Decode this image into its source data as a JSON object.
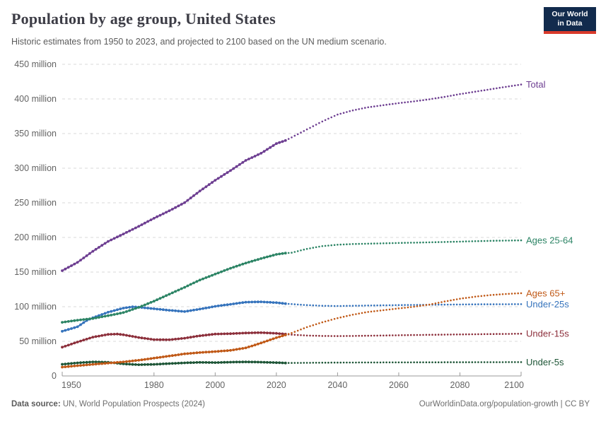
{
  "header": {
    "title": "Population by age group, United States",
    "subtitle": "Historic estimates from 1950 to 2023, and projected to 2100 based on the UN medium scenario."
  },
  "logo": {
    "line1": "Our World",
    "line2": "in Data"
  },
  "footer": {
    "source_label": "Data source:",
    "source": "UN, World Population Prospects (2024)",
    "credit": "OurWorldinData.org/population-growth | CC BY"
  },
  "chart_data": {
    "type": "line",
    "title": "Population by age group, United States",
    "unit": "million",
    "xlabel": "",
    "ylabel": "",
    "xlim": [
      1950,
      2100
    ],
    "ylim": [
      0,
      450
    ],
    "grid": true,
    "legend_position": "right-of-lines",
    "projection_start_year": 2023,
    "x_ticks": [
      1950,
      1980,
      2000,
      2020,
      2040,
      2060,
      2080,
      2100
    ],
    "y_ticks": [
      {
        "value": 0,
        "label": "0"
      },
      {
        "value": 50,
        "label": "50 million"
      },
      {
        "value": 100,
        "label": "100 million"
      },
      {
        "value": 150,
        "label": "150 million"
      },
      {
        "value": 200,
        "label": "200 million"
      },
      {
        "value": 250,
        "label": "250 million"
      },
      {
        "value": 300,
        "label": "300 million"
      },
      {
        "value": 350,
        "label": "350 million"
      },
      {
        "value": 400,
        "label": "400 million"
      },
      {
        "value": 450,
        "label": "450 million"
      }
    ],
    "series": [
      {
        "name": "Under-5s",
        "color": "#1d5536",
        "historic": [
          [
            1950,
            16.8
          ],
          [
            1955,
            18.9
          ],
          [
            1960,
            20.3
          ],
          [
            1965,
            19.8
          ],
          [
            1970,
            17.4
          ],
          [
            1975,
            16.2
          ],
          [
            1980,
            16.7
          ],
          [
            1985,
            17.9
          ],
          [
            1990,
            18.9
          ],
          [
            1995,
            19.6
          ],
          [
            2000,
            19.3
          ],
          [
            2005,
            19.9
          ],
          [
            2010,
            20.3
          ],
          [
            2015,
            19.9
          ],
          [
            2020,
            19.2
          ],
          [
            2023,
            18.7
          ]
        ],
        "projected": [
          [
            2023,
            18.7
          ],
          [
            2030,
            19.0
          ],
          [
            2040,
            19.3
          ],
          [
            2050,
            19.5
          ],
          [
            2060,
            19.6
          ],
          [
            2070,
            19.7
          ],
          [
            2080,
            19.8
          ],
          [
            2090,
            19.9
          ],
          [
            2100,
            20.0
          ]
        ]
      },
      {
        "name": "Under-15s",
        "color": "#8c2f3b",
        "historic": [
          [
            1950,
            41.5
          ],
          [
            1955,
            49.0
          ],
          [
            1960,
            56.0
          ],
          [
            1965,
            60.0
          ],
          [
            1968,
            60.5
          ],
          [
            1970,
            59.5
          ],
          [
            1975,
            55.5
          ],
          [
            1980,
            52.5
          ],
          [
            1985,
            52.2
          ],
          [
            1990,
            54.5
          ],
          [
            1995,
            58.0
          ],
          [
            2000,
            60.5
          ],
          [
            2005,
            61.0
          ],
          [
            2010,
            62.0
          ],
          [
            2015,
            62.5
          ],
          [
            2020,
            61.5
          ],
          [
            2023,
            60.4
          ]
        ],
        "projected": [
          [
            2023,
            60.4
          ],
          [
            2025,
            59.6
          ],
          [
            2030,
            58.4
          ],
          [
            2035,
            57.8
          ],
          [
            2040,
            57.6
          ],
          [
            2045,
            57.8
          ],
          [
            2050,
            58.1
          ],
          [
            2055,
            58.4
          ],
          [
            2060,
            58.8
          ],
          [
            2065,
            59.1
          ],
          [
            2070,
            59.4
          ],
          [
            2075,
            59.7
          ],
          [
            2080,
            60.0
          ],
          [
            2085,
            60.2
          ],
          [
            2090,
            60.5
          ],
          [
            2095,
            60.7
          ],
          [
            2100,
            61.0
          ]
        ]
      },
      {
        "name": "Under-25s",
        "color": "#3573bc",
        "historic": [
          [
            1950,
            64.5
          ],
          [
            1955,
            71.0
          ],
          [
            1958,
            80.0
          ],
          [
            1960,
            84.0
          ],
          [
            1965,
            92.0
          ],
          [
            1970,
            98.0
          ],
          [
            1973,
            99.8
          ],
          [
            1975,
            99.3
          ],
          [
            1980,
            97.0
          ],
          [
            1985,
            94.8
          ],
          [
            1990,
            93.0
          ],
          [
            1995,
            96.5
          ],
          [
            2000,
            100.5
          ],
          [
            2005,
            103.5
          ],
          [
            2010,
            106.5
          ],
          [
            2015,
            107.0
          ],
          [
            2020,
            105.8
          ],
          [
            2023,
            104.4
          ]
        ],
        "projected": [
          [
            2023,
            104.4
          ],
          [
            2025,
            103.8
          ],
          [
            2030,
            102.3
          ],
          [
            2035,
            101.3
          ],
          [
            2040,
            101.0
          ],
          [
            2045,
            101.3
          ],
          [
            2050,
            101.7
          ],
          [
            2055,
            102.0
          ],
          [
            2060,
            102.3
          ],
          [
            2065,
            102.6
          ],
          [
            2070,
            102.8
          ],
          [
            2075,
            103.0
          ],
          [
            2080,
            103.2
          ],
          [
            2085,
            103.4
          ],
          [
            2090,
            103.5
          ],
          [
            2095,
            103.6
          ],
          [
            2100,
            103.7
          ]
        ]
      },
      {
        "name": "Ages 25-64",
        "color": "#2c8465",
        "historic": [
          [
            1950,
            77.5
          ],
          [
            1955,
            80.5
          ],
          [
            1960,
            83.0
          ],
          [
            1965,
            87.0
          ],
          [
            1970,
            91.5
          ],
          [
            1975,
            99.0
          ],
          [
            1980,
            108.0
          ],
          [
            1985,
            118.0
          ],
          [
            1990,
            128.0
          ],
          [
            1995,
            138.5
          ],
          [
            2000,
            147.0
          ],
          [
            2005,
            155.5
          ],
          [
            2010,
            163.0
          ],
          [
            2015,
            169.5
          ],
          [
            2020,
            175.5
          ],
          [
            2023,
            177.3
          ]
        ],
        "projected": [
          [
            2023,
            177.3
          ],
          [
            2025,
            178.0
          ],
          [
            2030,
            183.5
          ],
          [
            2035,
            187.5
          ],
          [
            2040,
            189.5
          ],
          [
            2045,
            190.5
          ],
          [
            2050,
            191.0
          ],
          [
            2055,
            191.5
          ],
          [
            2060,
            192.0
          ],
          [
            2065,
            192.5
          ],
          [
            2070,
            193.0
          ],
          [
            2075,
            193.5
          ],
          [
            2080,
            194.0
          ],
          [
            2085,
            194.6
          ],
          [
            2090,
            195.1
          ],
          [
            2095,
            195.5
          ],
          [
            2100,
            195.8
          ]
        ]
      },
      {
        "name": "Ages 65+",
        "color": "#c05917",
        "historic": [
          [
            1950,
            12.8
          ],
          [
            1955,
            14.8
          ],
          [
            1960,
            16.7
          ],
          [
            1965,
            18.5
          ],
          [
            1970,
            20.3
          ],
          [
            1975,
            22.7
          ],
          [
            1980,
            25.7
          ],
          [
            1985,
            28.8
          ],
          [
            1990,
            31.9
          ],
          [
            1995,
            33.8
          ],
          [
            2000,
            35.2
          ],
          [
            2005,
            36.9
          ],
          [
            2010,
            40.5
          ],
          [
            2015,
            47.5
          ],
          [
            2020,
            55.2
          ],
          [
            2023,
            59.2
          ]
        ],
        "projected": [
          [
            2023,
            59.2
          ],
          [
            2025,
            62.0
          ],
          [
            2030,
            70.5
          ],
          [
            2035,
            77.5
          ],
          [
            2040,
            83.5
          ],
          [
            2045,
            88.5
          ],
          [
            2050,
            92.5
          ],
          [
            2055,
            95.0
          ],
          [
            2060,
            97.5
          ],
          [
            2065,
            100.0
          ],
          [
            2070,
            103.0
          ],
          [
            2075,
            107.5
          ],
          [
            2080,
            111.5
          ],
          [
            2085,
            114.5
          ],
          [
            2090,
            116.8
          ],
          [
            2095,
            118.4
          ],
          [
            2100,
            119.5
          ]
        ]
      },
      {
        "name": "Total",
        "color": "#6d3e91",
        "historic": [
          [
            1950,
            152.0
          ],
          [
            1955,
            164.0
          ],
          [
            1960,
            180.0
          ],
          [
            1965,
            194.3
          ],
          [
            1970,
            205.0
          ],
          [
            1975,
            216.0
          ],
          [
            1980,
            227.7
          ],
          [
            1985,
            238.5
          ],
          [
            1990,
            250.2
          ],
          [
            1995,
            267.0
          ],
          [
            2000,
            282.5
          ],
          [
            2005,
            296.5
          ],
          [
            2010,
            311.2
          ],
          [
            2015,
            321.5
          ],
          [
            2020,
            335.5
          ],
          [
            2023,
            340.0
          ]
        ],
        "projected": [
          [
            2023,
            340.0
          ],
          [
            2025,
            344.5
          ],
          [
            2030,
            356.0
          ],
          [
            2035,
            367.5
          ],
          [
            2040,
            377.5
          ],
          [
            2045,
            383.5
          ],
          [
            2050,
            388.0
          ],
          [
            2055,
            391.0
          ],
          [
            2060,
            394.0
          ],
          [
            2065,
            396.5
          ],
          [
            2070,
            399.5
          ],
          [
            2075,
            403.0
          ],
          [
            2080,
            407.0
          ],
          [
            2085,
            410.5
          ],
          [
            2090,
            414.0
          ],
          [
            2095,
            417.5
          ],
          [
            2100,
            420.8
          ]
        ]
      }
    ]
  }
}
